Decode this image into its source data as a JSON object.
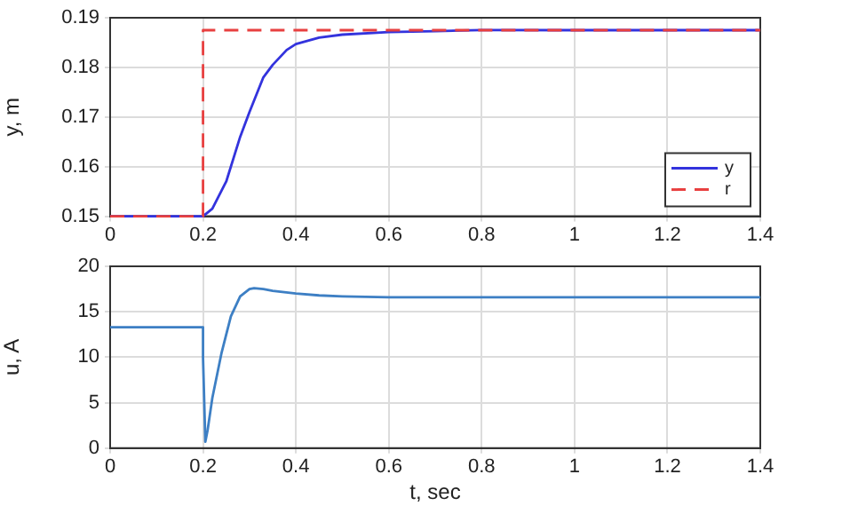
{
  "chart_data": [
    {
      "type": "line",
      "ylabel": "y, m",
      "xlim": [
        0,
        1.4
      ],
      "xticks": [
        0,
        0.2,
        0.4,
        0.6,
        0.8,
        1,
        1.2,
        1.4
      ],
      "ylim": [
        0.15,
        0.19
      ],
      "yticks": [
        0.15,
        0.16,
        0.17,
        0.18,
        0.19
      ],
      "grid": true,
      "legend": "bottom right",
      "series": [
        {
          "name": "y",
          "color": "#3333dd",
          "line_style": "solid",
          "x": [
            0,
            0.2,
            0.22,
            0.25,
            0.28,
            0.3,
            0.33,
            0.35,
            0.38,
            0.4,
            0.45,
            0.5,
            0.6,
            0.7,
            0.8,
            1,
            1.4
          ],
          "values": [
            0.15,
            0.15,
            0.1515,
            0.157,
            0.166,
            0.171,
            0.178,
            0.1805,
            0.1835,
            0.1847,
            0.186,
            0.1866,
            0.1871,
            0.1873,
            0.1875,
            0.1875,
            0.1875
          ]
        },
        {
          "name": "r",
          "color": "#e84040",
          "line_style": "dashed",
          "x": [
            0,
            0.2,
            0.2,
            1.4
          ],
          "values": [
            0.15,
            0.15,
            0.1875,
            0.1875
          ]
        }
      ]
    },
    {
      "type": "line",
      "xlabel": "t, sec",
      "ylabel": "u, A",
      "xlim": [
        0,
        1.4
      ],
      "xticks": [
        0,
        0.2,
        0.4,
        0.6,
        0.8,
        1,
        1.2,
        1.4
      ],
      "ylim": [
        0,
        20
      ],
      "yticks": [
        0,
        5,
        10,
        15,
        20
      ],
      "grid": true,
      "series": [
        {
          "color": "#3d7fc4",
          "line_style": "solid",
          "x": [
            0,
            0.2,
            0.2,
            0.205,
            0.21,
            0.22,
            0.24,
            0.26,
            0.28,
            0.3,
            0.31,
            0.33,
            0.35,
            0.4,
            0.45,
            0.5,
            0.6,
            0.8,
            1.4
          ],
          "values": [
            13.3,
            13.3,
            10,
            0.7,
            2,
            5.5,
            10.5,
            14.5,
            16.7,
            17.5,
            17.6,
            17.5,
            17.3,
            17,
            16.8,
            16.7,
            16.6,
            16.6,
            16.6
          ]
        }
      ]
    }
  ]
}
